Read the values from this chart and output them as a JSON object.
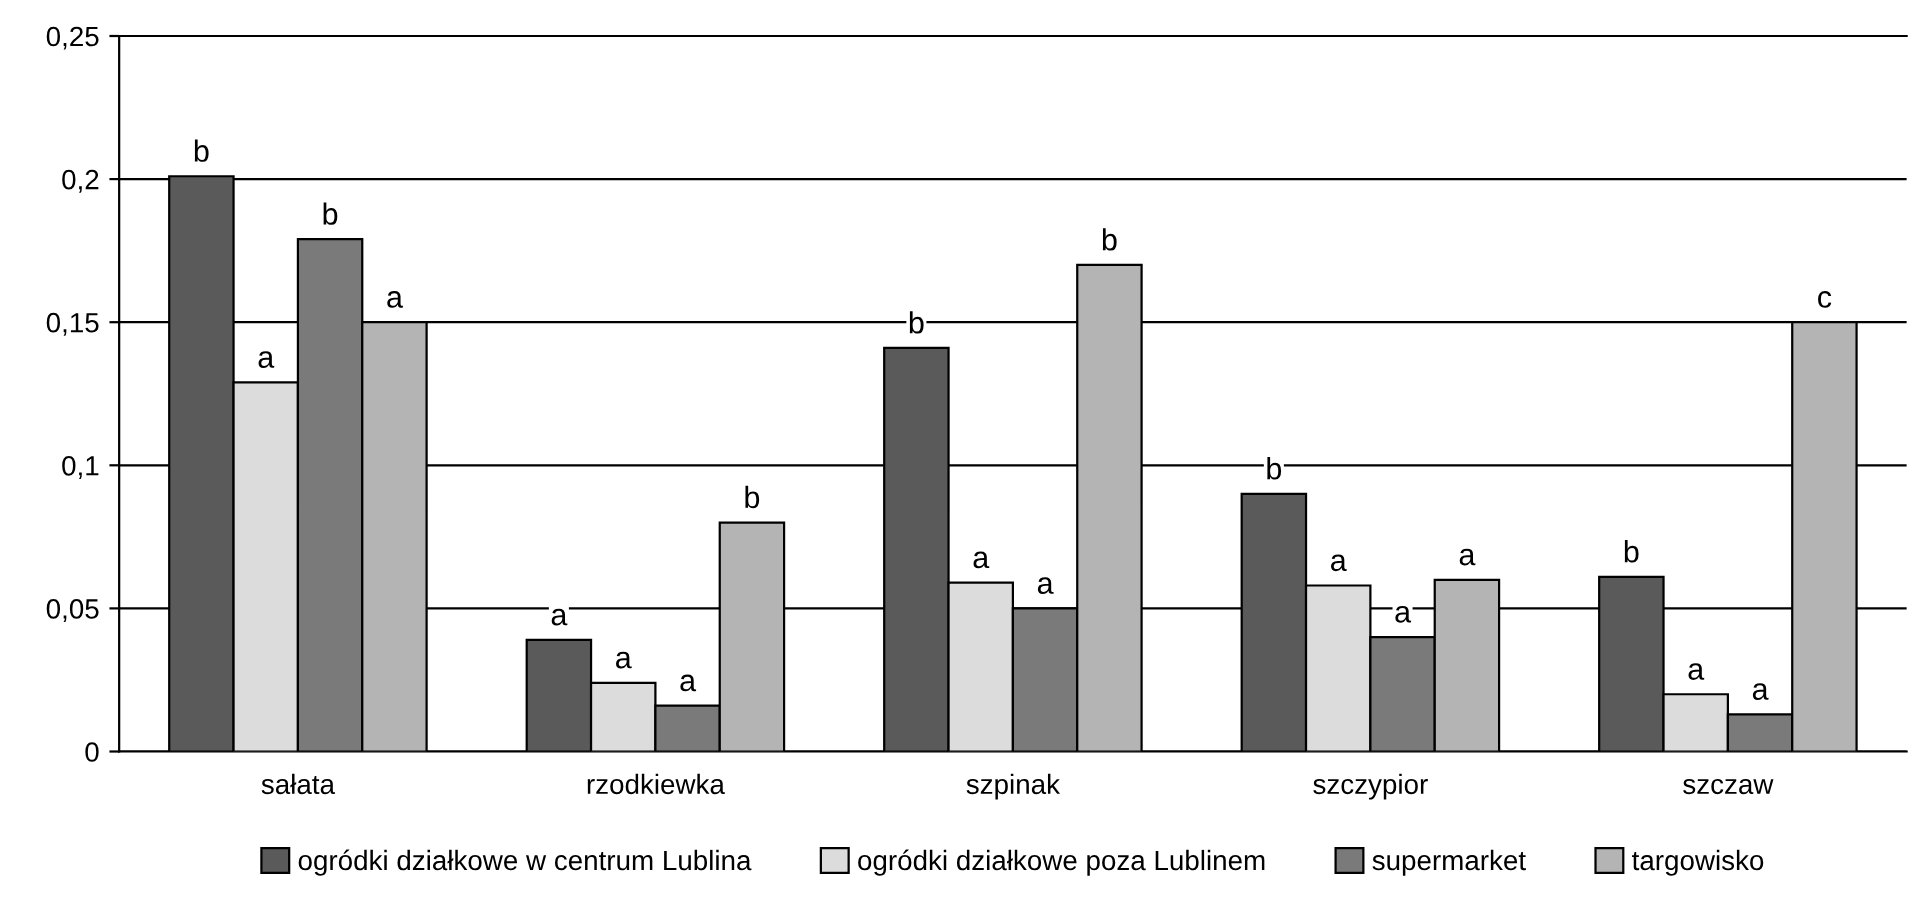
{
  "chart_data": {
    "type": "bar",
    "categories": [
      "sałata",
      "rzodkiewka",
      "szpinak",
      "szczypior",
      "szczaw"
    ],
    "series": [
      {
        "name": "ogródki działkowe w centrum Lublina",
        "color": "#5a5a5a",
        "values": [
          0.201,
          0.039,
          0.141,
          0.09,
          0.061
        ],
        "value_labels": [
          "b",
          "a",
          "b",
          "b",
          "b"
        ]
      },
      {
        "name": "ogródki działkowe poza Lublinem",
        "color": "#dcdcdc",
        "values": [
          0.129,
          0.024,
          0.059,
          0.058,
          0.02
        ],
        "value_labels": [
          "a",
          "a",
          "a",
          "a",
          "a"
        ]
      },
      {
        "name": "supermarket",
        "color": "#7a7a7a",
        "values": [
          0.179,
          0.016,
          0.05,
          0.04,
          0.013
        ],
        "value_labels": [
          "b",
          "a",
          "a",
          "a",
          "a"
        ]
      },
      {
        "name": "targowisko",
        "color": "#b4b4b4",
        "values": [
          0.15,
          0.08,
          0.17,
          0.06,
          0.15
        ],
        "value_labels": [
          "a",
          "b",
          "b",
          "a",
          "c"
        ]
      }
    ],
    "ylim": [
      0,
      0.25
    ],
    "yticks": [
      0,
      {
        "value": 0.05,
        "label": "0,05"
      },
      {
        "value": 0.1,
        "label": "0,1"
      },
      {
        "value": 0.15,
        "label": "0,15"
      },
      {
        "value": 0.2,
        "label": "0,2"
      },
      {
        "value": 0.25,
        "label": "0,25"
      }
    ],
    "grid": "y",
    "legend": "bottom"
  }
}
